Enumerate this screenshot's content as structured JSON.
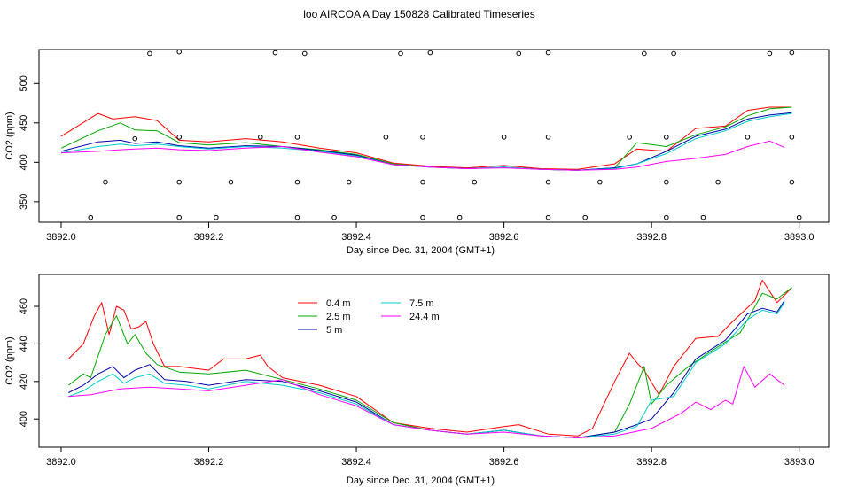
{
  "figure": {
    "title": "loo AIRCOA A  Day 150828  Calibrated Timeseries"
  },
  "chart_data": [
    {
      "type": "line",
      "xlabel": "Day since Dec. 31, 2004 (GMT+1)",
      "ylabel": "CO2 (ppm)",
      "xlim": [
        3891.97,
        3893.04
      ],
      "ylim": [
        324,
        543
      ],
      "xticks": [
        3892.0,
        3892.2,
        3892.4,
        3892.6,
        3892.8,
        3893.0
      ],
      "xtick_labels": [
        "3892.0",
        "3892.2",
        "3892.4",
        "3892.6",
        "3892.8",
        "3893.0"
      ],
      "yticks": [
        350,
        400,
        450,
        500
      ],
      "ytick_labels": [
        "350",
        "400",
        "450",
        "500"
      ],
      "grid": false,
      "legend": "none",
      "series": [
        {
          "color": "#ff0000",
          "x": [
            3892.0,
            3892.05,
            3892.07,
            3892.1,
            3892.13,
            3892.16,
            3892.2,
            3892.25,
            3892.3,
            3892.35,
            3892.4,
            3892.45,
            3892.5,
            3892.55,
            3892.6,
            3892.65,
            3892.7,
            3892.75,
            3892.78,
            3892.82,
            3892.86,
            3892.9,
            3892.93,
            3892.96,
            3892.99
          ],
          "y": [
            433,
            462,
            455,
            458,
            453,
            428,
            426,
            430,
            426,
            418,
            412,
            399,
            395,
            393,
            396,
            392,
            391,
            398,
            417,
            414,
            443,
            446,
            466,
            470,
            470
          ]
        },
        {
          "color": "#00aa00",
          "x": [
            3892.0,
            3892.05,
            3892.08,
            3892.1,
            3892.13,
            3892.16,
            3892.2,
            3892.25,
            3892.3,
            3892.35,
            3892.4,
            3892.45,
            3892.5,
            3892.55,
            3892.6,
            3892.65,
            3892.7,
            3892.75,
            3892.78,
            3892.82,
            3892.86,
            3892.9,
            3892.93,
            3892.96,
            3892.99
          ],
          "y": [
            418,
            440,
            450,
            441,
            440,
            425,
            422,
            425,
            420,
            416,
            410,
            398,
            394,
            392,
            394,
            391,
            390,
            393,
            425,
            420,
            435,
            445,
            459,
            468,
            470
          ]
        },
        {
          "color": "#0000aa",
          "x": [
            3892.0,
            3892.05,
            3892.08,
            3892.1,
            3892.13,
            3892.16,
            3892.2,
            3892.25,
            3892.3,
            3892.35,
            3892.4,
            3892.45,
            3892.5,
            3892.55,
            3892.6,
            3892.65,
            3892.7,
            3892.75,
            3892.78,
            3892.82,
            3892.86,
            3892.9,
            3892.93,
            3892.96,
            3892.99
          ],
          "y": [
            414,
            426,
            428,
            424,
            426,
            421,
            418,
            421,
            420,
            415,
            409,
            397,
            394,
            392,
            394,
            391,
            390,
            393,
            398,
            414,
            433,
            442,
            455,
            460,
            463
          ]
        },
        {
          "color": "#00cccc",
          "x": [
            3892.0,
            3892.05,
            3892.08,
            3892.1,
            3892.13,
            3892.16,
            3892.2,
            3892.25,
            3892.3,
            3892.35,
            3892.4,
            3892.45,
            3892.5,
            3892.55,
            3892.6,
            3892.65,
            3892.7,
            3892.75,
            3892.78,
            3892.82,
            3892.86,
            3892.9,
            3892.93,
            3892.96,
            3892.99
          ],
          "y": [
            412,
            420,
            423,
            421,
            423,
            420,
            417,
            420,
            418,
            414,
            408,
            397,
            394,
            392,
            394,
            391,
            390,
            392,
            398,
            411,
            430,
            440,
            452,
            458,
            462
          ]
        },
        {
          "color": "#ff00ff",
          "x": [
            3892.0,
            3892.05,
            3892.08,
            3892.1,
            3892.13,
            3892.16,
            3892.2,
            3892.25,
            3892.3,
            3892.35,
            3892.4,
            3892.45,
            3892.5,
            3892.55,
            3892.6,
            3892.65,
            3892.7,
            3892.75,
            3892.78,
            3892.82,
            3892.86,
            3892.9,
            3892.93,
            3892.96,
            3892.98
          ],
          "y": [
            412,
            414,
            416,
            417,
            418,
            416,
            415,
            418,
            420,
            413,
            407,
            397,
            394,
            392,
            393,
            391,
            390,
            391,
            394,
            401,
            405,
            410,
            420,
            427,
            419
          ]
        },
        {
          "kind": "scatter",
          "color": "#000000",
          "marker": "open-circle",
          "x": [
            3892.04,
            3892.06,
            3892.1,
            3892.12,
            3892.16,
            3892.16,
            3892.16,
            3892.16,
            3892.21,
            3892.23,
            3892.27,
            3892.29,
            3892.32,
            3892.32,
            3892.32,
            3892.33,
            3892.37,
            3892.39,
            3892.44,
            3892.46,
            3892.49,
            3892.49,
            3892.49,
            3892.5,
            3892.54,
            3892.56,
            3892.6,
            3892.62,
            3892.66,
            3892.66,
            3892.66,
            3892.66,
            3892.71,
            3892.73,
            3892.77,
            3892.79,
            3892.82,
            3892.82,
            3892.82,
            3892.83,
            3892.87,
            3892.89,
            3892.93,
            3892.96,
            3892.99,
            3892.99,
            3892.99,
            3893.0
          ],
          "y": [
            330,
            375,
            430,
            538,
            330,
            375,
            432,
            540,
            330,
            375,
            432,
            539,
            432,
            375,
            330,
            538,
            330,
            375,
            432,
            538,
            330,
            375,
            432,
            539,
            330,
            375,
            432,
            538,
            432,
            375,
            330,
            539,
            330,
            375,
            432,
            538,
            330,
            375,
            432,
            538,
            330,
            375,
            432,
            538,
            539,
            432,
            375,
            330
          ]
        }
      ]
    },
    {
      "type": "line",
      "xlabel": "Day since Dec. 31, 2004 (GMT+1)",
      "ylabel": "CO2 (ppm)",
      "xlim": [
        3891.97,
        3893.04
      ],
      "ylim": [
        385,
        477
      ],
      "xticks": [
        3892.0,
        3892.2,
        3892.4,
        3892.6,
        3892.8,
        3893.0
      ],
      "xtick_labels": [
        "3892.0",
        "3892.2",
        "3892.4",
        "3892.6",
        "3892.8",
        "3893.0"
      ],
      "yticks": [
        400,
        420,
        440,
        460
      ],
      "ytick_labels": [
        "400",
        "420",
        "440",
        "460"
      ],
      "grid": false,
      "legend": "top-left",
      "series": [
        {
          "name": "0.4 m",
          "color": "#ff0000",
          "x": [
            3892.01,
            3892.03,
            3892.045,
            3892.055,
            3892.065,
            3892.075,
            3892.085,
            3892.095,
            3892.105,
            3892.115,
            3892.125,
            3892.14,
            3892.16,
            3892.2,
            3892.22,
            3892.25,
            3892.27,
            3892.28,
            3892.3,
            3892.35,
            3892.4,
            3892.45,
            3892.5,
            3892.55,
            3892.6,
            3892.62,
            3892.66,
            3892.7,
            3892.72,
            3892.75,
            3892.77,
            3892.78,
            3892.79,
            3892.81,
            3892.83,
            3892.86,
            3892.89,
            3892.91,
            3892.94,
            3892.95,
            3892.97,
            3892.99
          ],
          "y": [
            432,
            440,
            455,
            462,
            445,
            460,
            458,
            448,
            449,
            452,
            440,
            428,
            428,
            426,
            432,
            432,
            434,
            428,
            422,
            418,
            412,
            398,
            395,
            393,
            396,
            397,
            392,
            391,
            395,
            420,
            435,
            430,
            426,
            413,
            428,
            443,
            444,
            452,
            463,
            474,
            462,
            470
          ]
        },
        {
          "name": "2.5 m",
          "color": "#00aa00",
          "x": [
            3892.01,
            3892.03,
            3892.04,
            3892.06,
            3892.075,
            3892.09,
            3892.1,
            3892.115,
            3892.13,
            3892.16,
            3892.2,
            3892.25,
            3892.3,
            3892.35,
            3892.4,
            3892.45,
            3892.5,
            3892.55,
            3892.6,
            3892.65,
            3892.7,
            3892.75,
            3892.77,
            3892.79,
            3892.8,
            3892.82,
            3892.85,
            3892.88,
            3892.92,
            3892.95,
            3892.97,
            3892.99
          ],
          "y": [
            418,
            424,
            422,
            445,
            455,
            440,
            445,
            435,
            429,
            425,
            424,
            426,
            421,
            416,
            410,
            398,
            394,
            392,
            394,
            391,
            390,
            393,
            408,
            428,
            408,
            418,
            428,
            436,
            446,
            467,
            464,
            470
          ]
        },
        {
          "name": "5 m",
          "color": "#0000aa",
          "x": [
            3892.01,
            3892.03,
            3892.05,
            3892.07,
            3892.085,
            3892.1,
            3892.12,
            3892.14,
            3892.17,
            3892.2,
            3892.25,
            3892.3,
            3892.35,
            3892.4,
            3892.45,
            3892.5,
            3892.55,
            3892.6,
            3892.65,
            3892.7,
            3892.75,
            3892.78,
            3892.8,
            3892.83,
            3892.86,
            3892.9,
            3892.93,
            3892.95,
            3892.97,
            3892.98
          ],
          "y": [
            414,
            418,
            424,
            428,
            422,
            426,
            429,
            421,
            420,
            418,
            421,
            420,
            415,
            409,
            397,
            394,
            392,
            394,
            391,
            390,
            393,
            397,
            400,
            414,
            432,
            442,
            456,
            459,
            457,
            463
          ]
        },
        {
          "name": "7.5 m",
          "color": "#00cccc",
          "x": [
            3892.01,
            3892.03,
            3892.05,
            3892.07,
            3892.085,
            3892.1,
            3892.12,
            3892.14,
            3892.17,
            3892.2,
            3892.25,
            3892.3,
            3892.35,
            3892.4,
            3892.45,
            3892.5,
            3892.55,
            3892.6,
            3892.65,
            3892.7,
            3892.75,
            3892.78,
            3892.8,
            3892.83,
            3892.86,
            3892.9,
            3892.93,
            3892.95,
            3892.97,
            3892.98
          ],
          "y": [
            412,
            415,
            420,
            424,
            419,
            422,
            424,
            419,
            418,
            416,
            420,
            418,
            414,
            408,
            397,
            394,
            392,
            394,
            391,
            390,
            392,
            396,
            410,
            412,
            430,
            440,
            453,
            458,
            456,
            462
          ]
        },
        {
          "name": "24.4 m",
          "color": "#ff00ff",
          "x": [
            3892.01,
            3892.04,
            3892.08,
            3892.12,
            3892.16,
            3892.2,
            3892.25,
            3892.3,
            3892.35,
            3892.4,
            3892.45,
            3892.5,
            3892.55,
            3892.6,
            3892.65,
            3892.7,
            3892.75,
            3892.8,
            3892.84,
            3892.86,
            3892.88,
            3892.9,
            3892.91,
            3892.925,
            3892.94,
            3892.96,
            3892.98
          ],
          "y": [
            412,
            413,
            416,
            417,
            416,
            415,
            418,
            421,
            413,
            407,
            397,
            394,
            392,
            393,
            391,
            390,
            391,
            395,
            403,
            409,
            405,
            410,
            408,
            428,
            417,
            424,
            418
          ]
        }
      ]
    }
  ]
}
